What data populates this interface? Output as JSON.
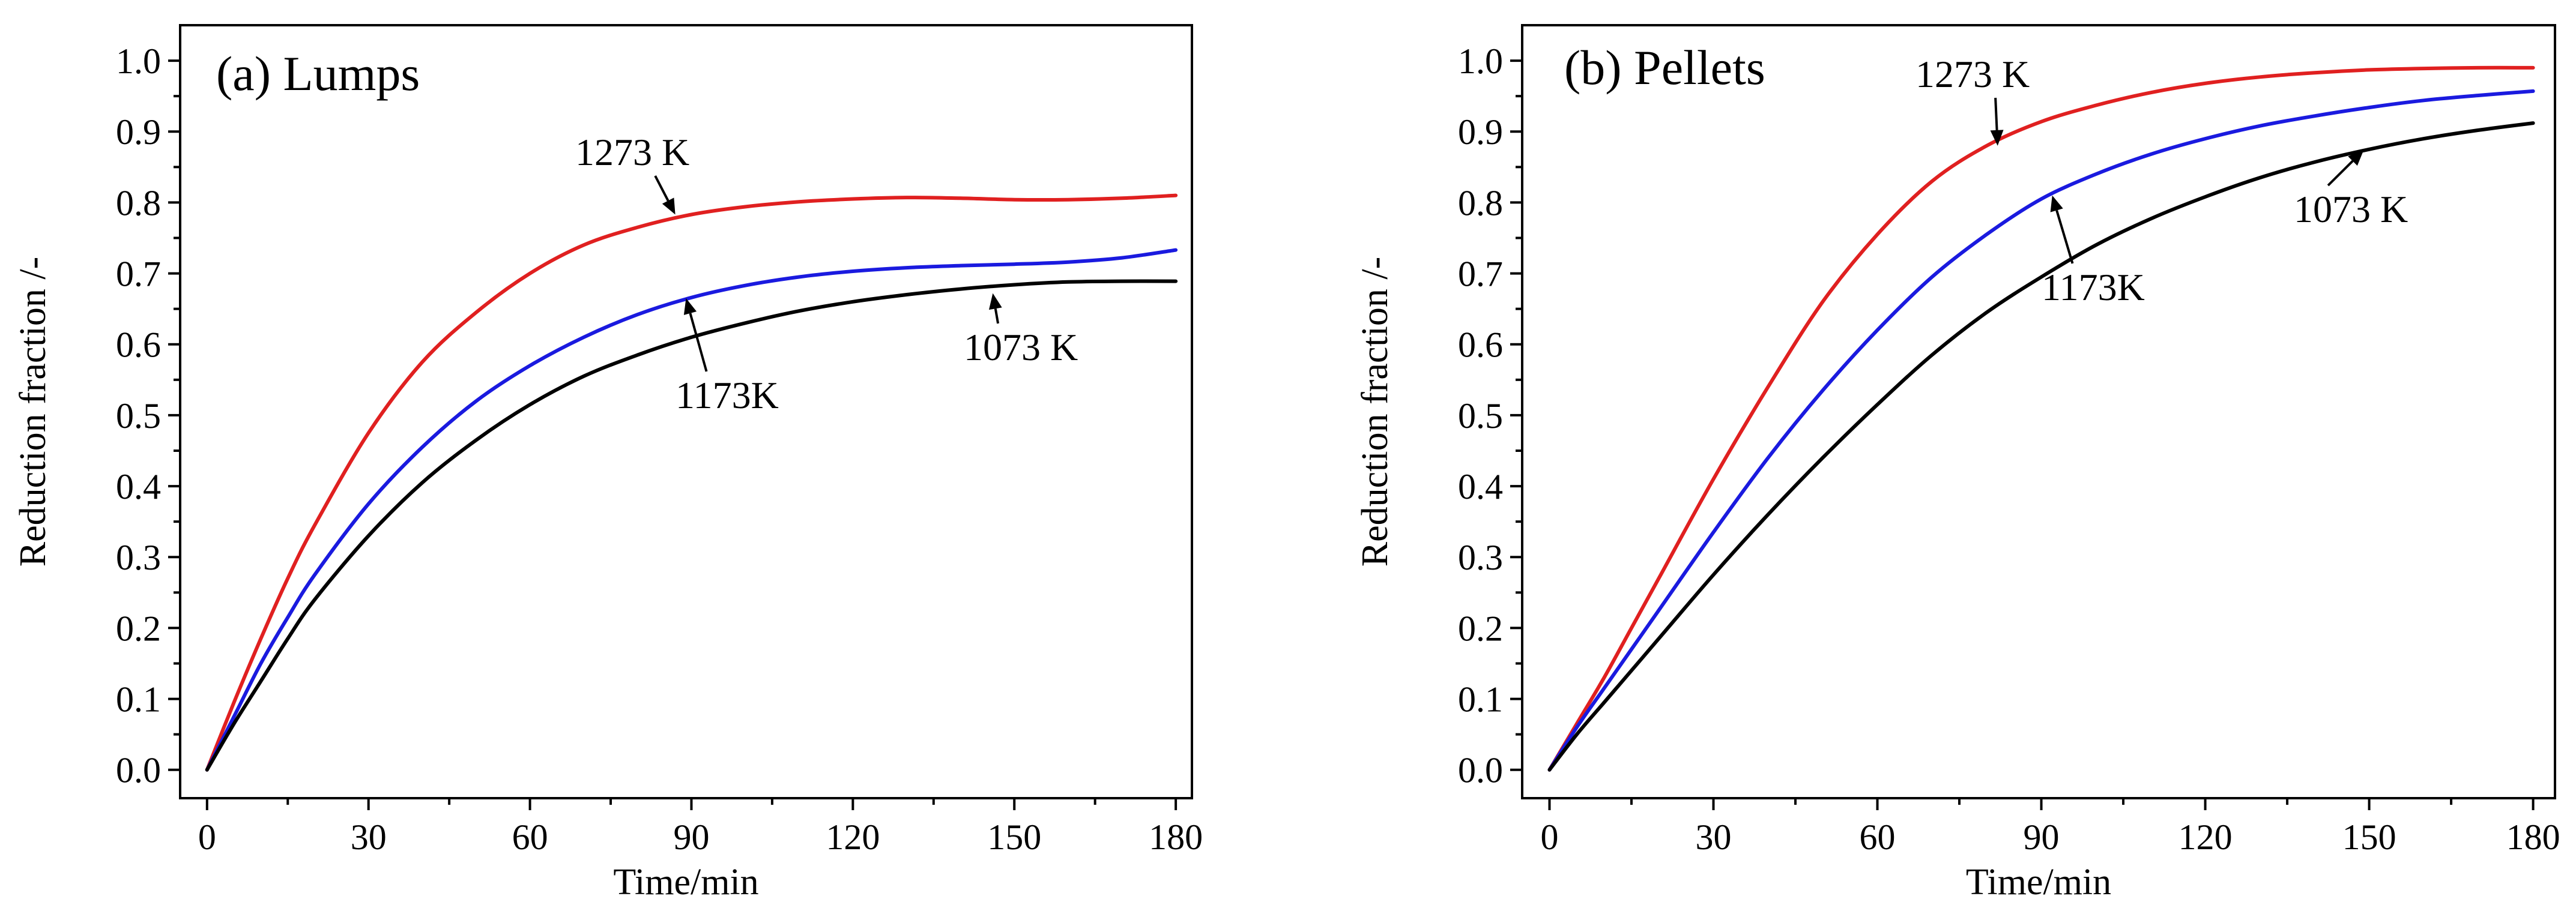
{
  "chart_data": [
    {
      "type": "line",
      "title": "(a) Lumps",
      "xlabel": "Time/min",
      "ylabel": "Reduction fraction /-",
      "xlim": [
        -5,
        183
      ],
      "ylim": [
        -0.04,
        1.05
      ],
      "xticks": [
        0,
        30,
        60,
        90,
        120,
        150,
        180
      ],
      "xtick_labels": [
        "0",
        "30",
        "60",
        "90",
        "120",
        "150",
        "180"
      ],
      "yticks": [
        0.0,
        0.1,
        0.2,
        0.3,
        0.4,
        0.5,
        0.6,
        0.7,
        0.8,
        0.9,
        1.0
      ],
      "ytick_labels": [
        "0.0",
        "0.1",
        "0.2",
        "0.3",
        "0.4",
        "0.5",
        "0.6",
        "0.7",
        "0.8",
        "0.9",
        "1.0"
      ],
      "series": [
        {
          "name": "1273 K",
          "color": "#e02020",
          "x": [
            0,
            5,
            10,
            15,
            20,
            30,
            40,
            50,
            60,
            70,
            80,
            90,
            100,
            110,
            120,
            130,
            140,
            150,
            160,
            170,
            180
          ],
          "y": [
            0,
            0.095,
            0.185,
            0.27,
            0.345,
            0.475,
            0.575,
            0.645,
            0.7,
            0.74,
            0.765,
            0.783,
            0.794,
            0.801,
            0.805,
            0.807,
            0.806,
            0.804,
            0.804,
            0.806,
            0.81
          ]
        },
        {
          "name": "1173K",
          "color": "#1a1adf",
          "x": [
            0,
            5,
            10,
            15,
            20,
            30,
            40,
            50,
            60,
            70,
            80,
            90,
            100,
            110,
            120,
            130,
            140,
            150,
            160,
            170,
            180
          ],
          "y": [
            0,
            0.075,
            0.15,
            0.215,
            0.275,
            0.375,
            0.455,
            0.52,
            0.57,
            0.61,
            0.642,
            0.666,
            0.683,
            0.695,
            0.703,
            0.708,
            0.711,
            0.713,
            0.716,
            0.722,
            0.733
          ]
        },
        {
          "name": "1073 K",
          "color": "#000000",
          "x": [
            0,
            5,
            10,
            15,
            20,
            30,
            40,
            50,
            60,
            70,
            80,
            90,
            100,
            110,
            120,
            130,
            140,
            150,
            160,
            170,
            180
          ],
          "y": [
            0,
            0.065,
            0.125,
            0.185,
            0.24,
            0.33,
            0.405,
            0.465,
            0.515,
            0.555,
            0.585,
            0.61,
            0.63,
            0.647,
            0.66,
            0.67,
            0.678,
            0.684,
            0.688,
            0.689,
            0.689
          ]
        }
      ],
      "annotations": [
        {
          "text": "1273 K",
          "series": "1273 K",
          "target": [
            87,
            0.783
          ]
        },
        {
          "text": "1173K",
          "series": "1173K",
          "target": [
            89,
            0.665
          ]
        },
        {
          "text": "1073 K",
          "series": "1073 K",
          "target": [
            146,
            0.672
          ]
        }
      ]
    },
    {
      "type": "line",
      "title": "(b) Pellets",
      "xlabel": "Time/min",
      "ylabel": "Reduction fraction /-",
      "xlim": [
        -5,
        184
      ],
      "ylim": [
        -0.04,
        1.05
      ],
      "xticks": [
        0,
        30,
        60,
        90,
        120,
        150,
        180
      ],
      "xtick_labels": [
        "0",
        "30",
        "60",
        "90",
        "120",
        "150",
        "180"
      ],
      "yticks": [
        0.0,
        0.1,
        0.2,
        0.3,
        0.4,
        0.5,
        0.6,
        0.7,
        0.8,
        0.9,
        1.0
      ],
      "ytick_labels": [
        "0.0",
        "0.1",
        "0.2",
        "0.3",
        "0.4",
        "0.5",
        "0.6",
        "0.7",
        "0.8",
        "0.9",
        "1.0"
      ],
      "series": [
        {
          "name": "1273 K",
          "color": "#e02020",
          "x": [
            0,
            5,
            10,
            15,
            20,
            30,
            40,
            50,
            60,
            70,
            80,
            90,
            100,
            110,
            120,
            130,
            140,
            150,
            160,
            170,
            180
          ],
          "y": [
            0,
            0.065,
            0.13,
            0.2,
            0.27,
            0.41,
            0.54,
            0.66,
            0.755,
            0.83,
            0.88,
            0.914,
            0.937,
            0.955,
            0.968,
            0.977,
            0.983,
            0.987,
            0.989,
            0.99,
            0.99
          ]
        },
        {
          "name": "1173K",
          "color": "#1a1adf",
          "x": [
            0,
            5,
            10,
            15,
            20,
            30,
            40,
            50,
            60,
            70,
            80,
            90,
            100,
            110,
            120,
            130,
            140,
            150,
            160,
            170,
            180
          ],
          "y": [
            0,
            0.06,
            0.115,
            0.17,
            0.225,
            0.335,
            0.44,
            0.535,
            0.62,
            0.695,
            0.755,
            0.805,
            0.84,
            0.868,
            0.89,
            0.908,
            0.922,
            0.934,
            0.944,
            0.951,
            0.957
          ]
        },
        {
          "name": "1073 K",
          "color": "#000000",
          "x": [
            0,
            5,
            10,
            15,
            20,
            30,
            40,
            50,
            60,
            70,
            80,
            90,
            100,
            110,
            120,
            130,
            140,
            150,
            160,
            170,
            180
          ],
          "y": [
            0,
            0.05,
            0.095,
            0.14,
            0.185,
            0.275,
            0.36,
            0.44,
            0.515,
            0.585,
            0.645,
            0.695,
            0.74,
            0.777,
            0.808,
            0.835,
            0.857,
            0.875,
            0.89,
            0.902,
            0.912
          ]
        }
      ],
      "annotations": [
        {
          "text": "1273 K",
          "series": "1273 K",
          "target": [
            82,
            0.88
          ]
        },
        {
          "text": "1173K",
          "series": "1173K",
          "target": [
            92,
            0.81
          ]
        },
        {
          "text": "1073 K",
          "series": "1073 K",
          "target": [
            149,
            0.874
          ]
        }
      ]
    }
  ]
}
